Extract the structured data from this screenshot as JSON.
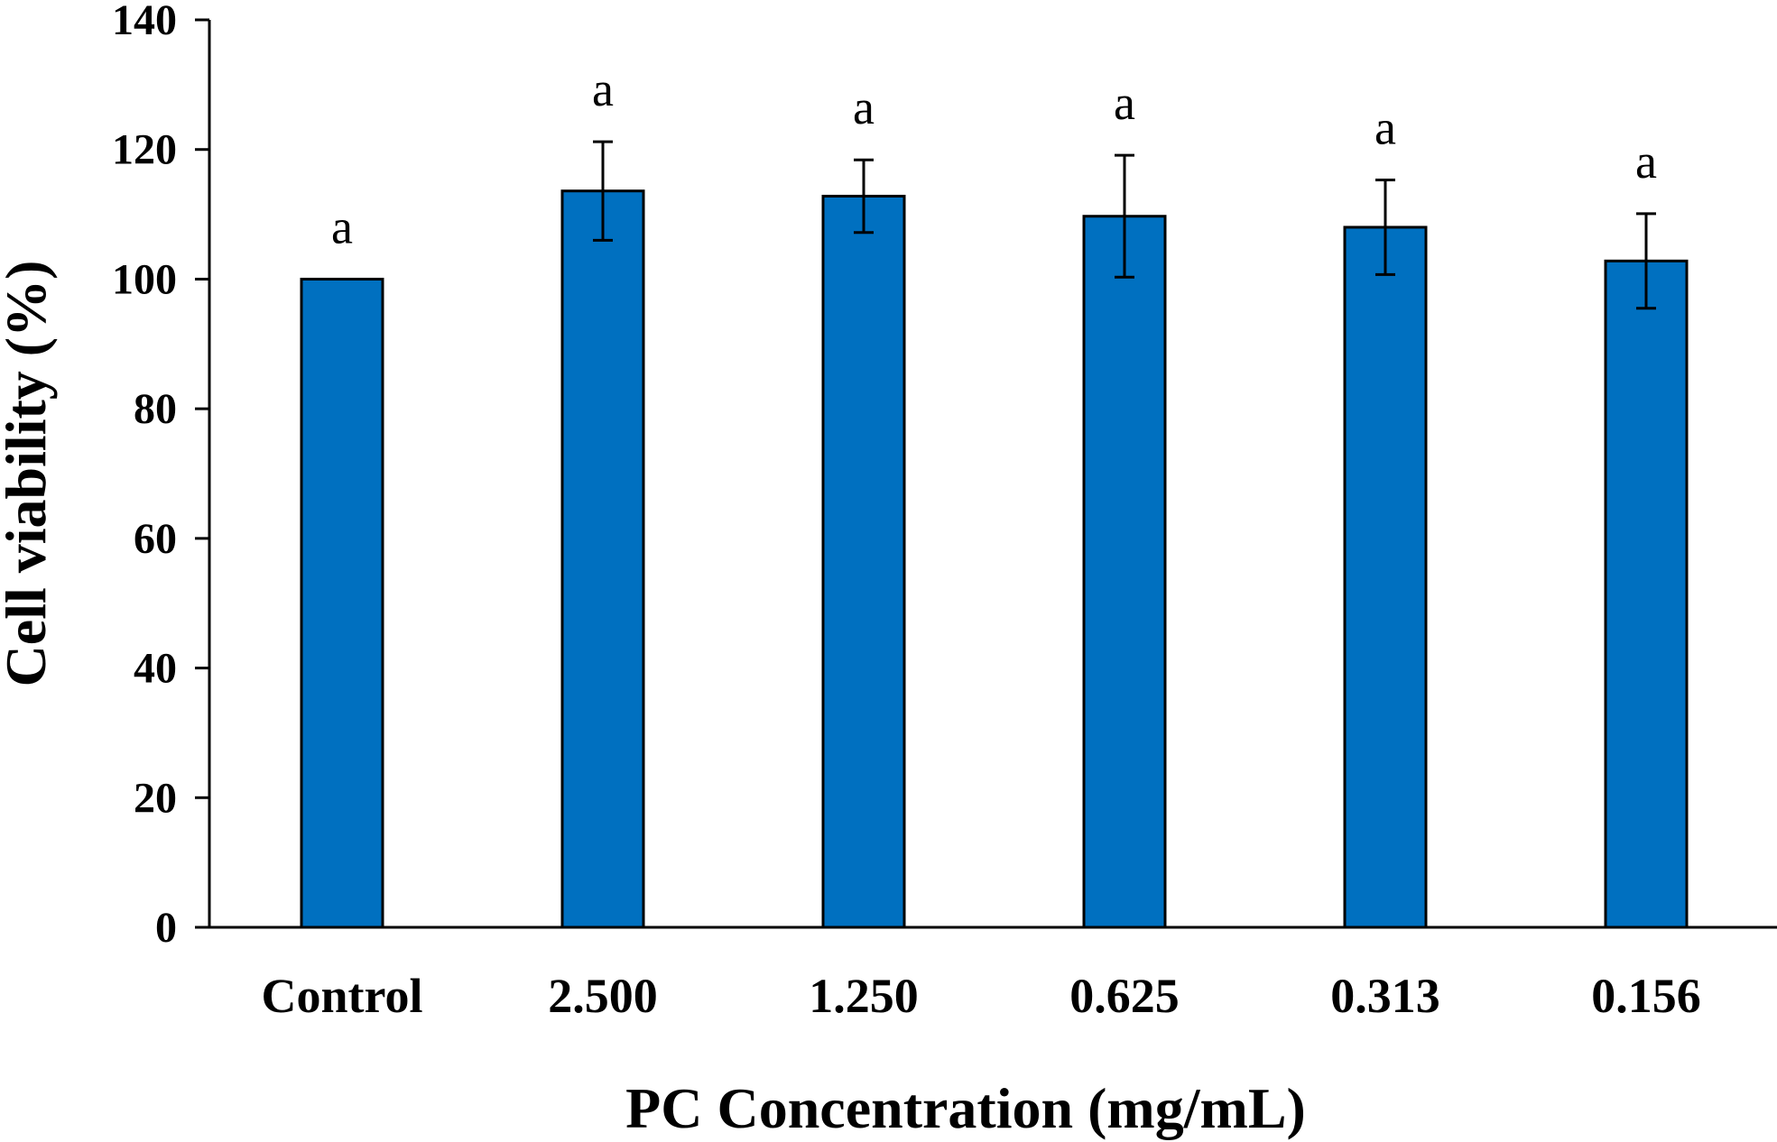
{
  "chart_data": {
    "type": "bar",
    "title": "",
    "xlabel": "PC Concentration (mg/mL)",
    "ylabel": "Cell viability (%)",
    "ylim": [
      0,
      140
    ],
    "yticks": [
      0,
      20,
      40,
      60,
      80,
      100,
      120,
      140
    ],
    "categories": [
      "Control",
      "2.500",
      "1.250",
      "0.625",
      "0.313",
      "0.156"
    ],
    "values": [
      100,
      113.6,
      112.8,
      109.7,
      108,
      102.8
    ],
    "errors": [
      0,
      7.6,
      5.6,
      9.4,
      7.3,
      7.3
    ],
    "significance": [
      "a",
      "a",
      "a",
      "a",
      "a",
      "a"
    ],
    "bar_color": "#0070C0",
    "grid": false,
    "legend": "none"
  }
}
